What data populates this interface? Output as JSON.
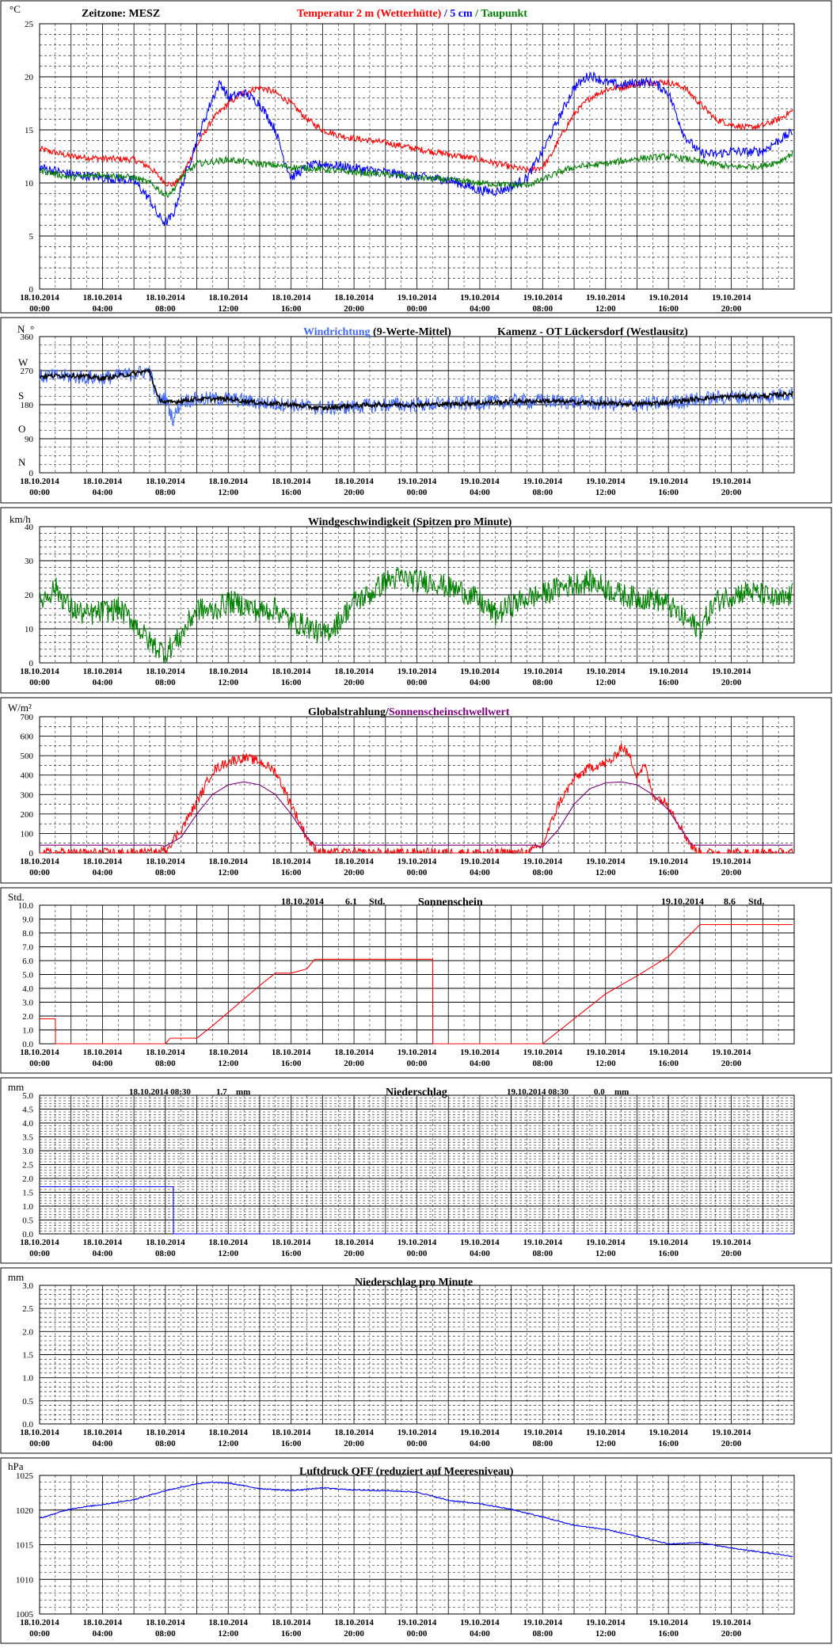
{
  "time_axis": {
    "dates": [
      "18.10.2014",
      "18.10.2014",
      "18.10.2014",
      "18.10.2014",
      "18.10.2014",
      "18.10.2014",
      "19.10.2014",
      "19.10.2014",
      "19.10.2014",
      "19.10.2014",
      "19.10.2014",
      "19.10.2014"
    ],
    "times": [
      "00:00",
      "04:00",
      "08:00",
      "12:00",
      "16:00",
      "20:00",
      "00:00",
      "04:00",
      "08:00",
      "12:00",
      "16:00",
      "20:00"
    ]
  },
  "colors": {
    "red": "#ff0000",
    "blue": "#0000ff",
    "green": "#008000",
    "purple": "#800080",
    "black": "#000000",
    "wind_blue": "#4169ff"
  },
  "panels": {
    "temperature": {
      "unit": "°C",
      "zone_label": "Zeitzone: MESZ",
      "title_red": "Temperatur 2 m (Wetterhütte)",
      "sep1": "/",
      "title_blue": "5 cm",
      "sep2": "/",
      "title_green": "Taupunkt",
      "y_ticks": [
        "0",
        "5",
        "10",
        "15",
        "20",
        "25"
      ]
    },
    "wind_direction": {
      "unit": "N",
      "unit2": "°",
      "title_blue": "Windrichtung",
      "title_rest": "(9-Werte-Mittel)",
      "location": "Kamenz - OT Lückersdorf (Westlausitz)",
      "y_ticks": [
        "0",
        "90",
        "180",
        "270",
        "360"
      ],
      "compass": [
        "W",
        "S",
        "O",
        "N"
      ]
    },
    "wind_speed": {
      "unit": "km/h",
      "title": "Windgeschwindigkeit (Spitzen pro Minute)",
      "y_ticks": [
        "0",
        "10",
        "20",
        "30",
        "40"
      ]
    },
    "radiation": {
      "unit": "W/m²",
      "title_red": "Globalstrahlung/",
      "title_purple": "Sonnenscheinschwellwert",
      "y_ticks": [
        "0",
        "100",
        "200",
        "300",
        "400",
        "500",
        "600",
        "700"
      ]
    },
    "sunshine": {
      "unit": "Std.",
      "title": "Sonnenschein",
      "day1_date": "18.10.2014",
      "day1_value": "6.1",
      "day1_unit": "Std.",
      "day2_date": "19.10.2014",
      "day2_value": "8.6",
      "day2_unit": "Std.",
      "y_ticks": [
        "0.0",
        "1.0",
        "2.0",
        "3.0",
        "4.0",
        "5.0",
        "6.0",
        "7.0",
        "8.0",
        "9.0",
        "10.0"
      ]
    },
    "precip": {
      "unit": "mm",
      "title": "Niederschlag",
      "day1_date": "18.10.2014 08:30",
      "day1_value": "1.7",
      "day1_unit": "mm",
      "day2_date": "19.10.2014 08:30",
      "day2_value": "0.0",
      "day2_unit": "mm",
      "y_ticks": [
        "0.0",
        "0.5",
        "1.0",
        "1.5",
        "2.0",
        "2.5",
        "3.0",
        "3.5",
        "4.0",
        "4.5",
        "5.0"
      ]
    },
    "precip_min": {
      "unit": "mm",
      "title": "Niederschlag pro Minute",
      "y_ticks": [
        "0.0",
        "0.5",
        "1.0",
        "1.5",
        "2.0",
        "2.5",
        "3.0"
      ]
    },
    "pressure": {
      "unit": "hPa",
      "title": "Luftdruck QFF (reduziert auf Meeresniveau)",
      "y_ticks": [
        "1005",
        "1010",
        "1015",
        "1020",
        "1025"
      ]
    }
  },
  "chart_data": [
    {
      "type": "line",
      "x_unit": "hours since 18.10.2014 00:00",
      "ylim": [
        0,
        25
      ],
      "series": [
        {
          "name": "Temperatur 2 m (Wetterhütte)",
          "color": "#ff0000",
          "x": [
            0,
            2,
            4,
            6,
            7,
            8,
            8.5,
            9,
            10,
            11,
            12,
            13,
            14,
            15,
            16,
            17,
            18,
            19,
            20,
            21,
            22,
            23,
            24,
            26,
            28,
            30,
            31,
            32,
            32.5,
            33,
            34,
            35,
            36,
            37,
            38,
            39,
            40,
            41,
            42,
            43,
            44,
            45,
            46,
            47,
            47.9
          ],
          "y": [
            13.2,
            12.5,
            12.3,
            12.2,
            11.5,
            10,
            9.8,
            10.5,
            13.5,
            16,
            17.5,
            18.5,
            19,
            18.5,
            17.5,
            16,
            15,
            14.5,
            14.2,
            14,
            13.8,
            13.5,
            13.2,
            12.7,
            12.2,
            11.5,
            11.2,
            11.5,
            12.5,
            14,
            16.5,
            18,
            18.8,
            19,
            19.3,
            19.5,
            19.5,
            19,
            17.5,
            16,
            15.5,
            15.2,
            15.4,
            16,
            16.8
          ],
          "noise": 0.3
        },
        {
          "name": "5 cm",
          "color": "#0000ff",
          "x": [
            0,
            2,
            4,
            6,
            7,
            7.5,
            8,
            8.5,
            9,
            10,
            11,
            11.5,
            12,
            13,
            14,
            15,
            15.5,
            16,
            17,
            18,
            19,
            20,
            22,
            24,
            26,
            28,
            29,
            30,
            31,
            32,
            33,
            34,
            35,
            36,
            37,
            38,
            39,
            40,
            41,
            42,
            43,
            44,
            45,
            46,
            47,
            47.9
          ],
          "y": [
            11.5,
            10.8,
            10.5,
            10.2,
            8.5,
            7,
            6.2,
            7,
            9.5,
            14,
            18,
            19.5,
            18,
            18.5,
            17.5,
            15,
            12.5,
            10.5,
            11.5,
            11.8,
            11.6,
            11.4,
            11,
            10.6,
            10.3,
            9.3,
            9.2,
            9.6,
            10.5,
            13,
            16,
            19,
            20.2,
            19.5,
            19.2,
            19.5,
            19.5,
            18.5,
            14.5,
            12.8,
            12.7,
            13,
            12.9,
            13,
            14,
            14.8
          ],
          "noise": 0.45
        },
        {
          "name": "Taupunkt",
          "color": "#008000",
          "x": [
            0,
            2,
            4,
            6,
            7,
            7.5,
            8,
            8.5,
            9,
            10,
            11,
            12,
            14,
            16,
            18,
            20,
            22,
            24,
            26,
            28,
            30,
            31,
            32,
            33,
            34,
            36,
            38,
            40,
            41,
            42,
            44,
            46,
            47,
            47.9
          ],
          "y": [
            11.2,
            10.5,
            10.8,
            10.5,
            10,
            9.5,
            8.8,
            9.3,
            10.5,
            11.8,
            12,
            12.2,
            11.8,
            11.5,
            11.3,
            11,
            10.8,
            10.5,
            10.3,
            10,
            9.8,
            9.8,
            10.3,
            11,
            11.5,
            11.8,
            12.3,
            12.5,
            12.3,
            12,
            11.5,
            11.6,
            12,
            12.8
          ],
          "noise": 0.3
        }
      ]
    },
    {
      "type": "line",
      "x_unit": "hours since 18.10.2014 00:00",
      "ylim": [
        0,
        360
      ],
      "series": [
        {
          "name": "Windrichtung",
          "color": "#4169ff",
          "x": [
            0,
            2,
            4,
            6,
            7,
            7.5,
            8,
            8.5,
            9,
            10,
            12,
            14,
            16,
            18,
            20,
            22,
            24,
            26,
            28,
            30,
            32,
            34,
            36,
            38,
            40,
            42,
            44,
            46,
            47.9
          ],
          "y": [
            255,
            255,
            250,
            262,
            270,
            190,
            200,
            140,
            190,
            195,
            195,
            185,
            180,
            170,
            175,
            180,
            180,
            182,
            185,
            188,
            190,
            187,
            182,
            180,
            185,
            195,
            200,
            200,
            210
          ],
          "noise": 20
        },
        {
          "name": "9-Werte-Mittel",
          "color": "#000000",
          "x": [
            0,
            2,
            4,
            6,
            7,
            7.5,
            8,
            9,
            10,
            12,
            14,
            16,
            18,
            20,
            22,
            24,
            26,
            28,
            30,
            32,
            34,
            36,
            38,
            40,
            42,
            44,
            46,
            47.9
          ],
          "y": [
            255,
            258,
            250,
            262,
            270,
            200,
            185,
            190,
            195,
            195,
            185,
            180,
            170,
            178,
            180,
            180,
            182,
            185,
            188,
            190,
            187,
            183,
            182,
            186,
            196,
            202,
            202,
            210
          ],
          "noise": 6
        }
      ]
    },
    {
      "type": "line",
      "x_unit": "hours since 18.10.2014 00:00",
      "ylim": [
        0,
        40
      ],
      "series": [
        {
          "name": "Windgeschwindigkeit",
          "color": "#008000",
          "x": [
            0,
            1,
            2,
            3,
            4,
            5,
            6,
            7,
            8,
            9,
            10,
            11,
            12,
            13,
            14,
            15,
            16,
            17,
            18,
            19,
            20,
            21,
            22,
            23,
            24,
            25,
            26,
            27,
            28,
            29,
            30,
            31,
            32,
            33,
            34,
            35,
            36,
            37,
            38,
            39,
            40,
            41,
            42,
            43,
            44,
            45,
            46,
            47,
            47.9
          ],
          "y": [
            18,
            22,
            16,
            14,
            15,
            16,
            12,
            6,
            3,
            8,
            16,
            15,
            18,
            17,
            15,
            16,
            12,
            11,
            8,
            12,
            18,
            20,
            24,
            25,
            24,
            24,
            22,
            21,
            18,
            14,
            17,
            19,
            20,
            22,
            23,
            24,
            22,
            20,
            19,
            19,
            17,
            13,
            10,
            18,
            20,
            21,
            20,
            18,
            20
          ],
          "noise": 3.5
        }
      ]
    },
    {
      "type": "line",
      "x_unit": "hours since 18.10.2014 00:00",
      "ylim": [
        0,
        700
      ],
      "series": [
        {
          "name": "Globalstrahlung",
          "color": "#ff0000",
          "x": [
            0,
            7.5,
            8,
            9,
            10,
            11,
            12,
            13,
            14,
            15,
            16,
            17,
            17.5,
            18,
            24,
            31,
            32,
            33,
            34,
            35,
            36,
            36.5,
            37,
            37.5,
            38,
            38.5,
            39,
            40,
            41,
            41.5,
            42,
            47.9
          ],
          "y": [
            0,
            0,
            15,
            120,
            260,
            420,
            470,
            490,
            470,
            420,
            250,
            80,
            20,
            0,
            0,
            0,
            40,
            250,
            380,
            440,
            460,
            480,
            550,
            500,
            400,
            450,
            300,
            250,
            100,
            30,
            0,
            0
          ],
          "noise": 25
        },
        {
          "name": "Sonnenscheinschwellwert",
          "color": "#800080",
          "x": [
            0,
            7.5,
            8,
            9,
            10,
            11,
            12,
            13,
            14,
            15,
            16,
            17,
            17.5,
            18,
            31.5,
            32,
            33,
            34,
            35,
            36,
            37,
            38,
            39,
            40,
            41,
            41.5,
            42,
            47.9
          ],
          "y": [
            40,
            40,
            35,
            80,
            200,
            300,
            350,
            365,
            350,
            300,
            200,
            80,
            40,
            40,
            40,
            30,
            120,
            250,
            330,
            360,
            365,
            350,
            300,
            220,
            100,
            40,
            40,
            40
          ],
          "noise": 0
        }
      ]
    },
    {
      "type": "line",
      "x_unit": "hours since 18.10.2014 00:00",
      "ylim": [
        0,
        10
      ],
      "series": [
        {
          "name": "Sonnenschein",
          "color": "#ff0000",
          "x": [
            0,
            1,
            1.01,
            8,
            8.3,
            10,
            11,
            14,
            15,
            16,
            17,
            17.5,
            25,
            25.01,
            32,
            36,
            38,
            40,
            42,
            47.9
          ],
          "y": [
            1.8,
            1.8,
            0,
            0,
            0.4,
            0.4,
            1.3,
            4.2,
            5.1,
            5.1,
            5.4,
            6.1,
            6.1,
            0,
            0,
            3.6,
            4.9,
            6.3,
            8.6,
            8.6
          ],
          "noise": 0
        }
      ]
    },
    {
      "type": "line",
      "x_unit": "hours since 18.10.2014 00:00",
      "ylim": [
        0,
        5
      ],
      "series": [
        {
          "name": "Niederschlag",
          "color": "#0000ff",
          "x": [
            0,
            8.5,
            8.51,
            47.9
          ],
          "y": [
            1.7,
            1.7,
            0,
            0
          ],
          "noise": 0
        }
      ]
    },
    {
      "type": "line",
      "x_unit": "hours since 18.10.2014 00:00",
      "ylim": [
        0,
        3
      ],
      "series": []
    },
    {
      "type": "line",
      "x_unit": "hours since 18.10.2014 00:00",
      "ylim": [
        1005,
        1025
      ],
      "series": [
        {
          "name": "Luftdruck QFF",
          "color": "#0000ff",
          "x": [
            0,
            2,
            4,
            6,
            8,
            10,
            11,
            12,
            13,
            14,
            16,
            18,
            20,
            22,
            24,
            26,
            28,
            30,
            32,
            34,
            36,
            38,
            40,
            42,
            44,
            46,
            47.9
          ],
          "y": [
            1018.8,
            1020.2,
            1020.8,
            1021.5,
            1022.8,
            1023.8,
            1024.0,
            1023.9,
            1023.5,
            1023.1,
            1022.8,
            1023.2,
            1022.9,
            1022.8,
            1022.6,
            1021.4,
            1020.9,
            1020.1,
            1019.0,
            1017.8,
            1017.2,
            1016.2,
            1015.1,
            1015.3,
            1014.5,
            1013.9,
            1013.3
          ],
          "noise": 0.08
        }
      ]
    }
  ]
}
